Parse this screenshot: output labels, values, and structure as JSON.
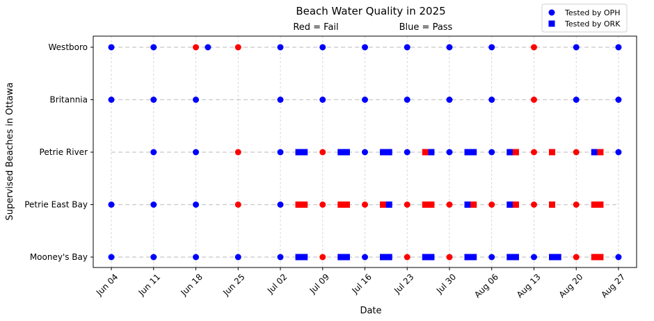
{
  "chart_data": {
    "type": "scatter",
    "title": "Beach Water Quality in 2025",
    "subtitle_left": "Red = Fail",
    "subtitle_right": "Blue = Pass",
    "xlabel": "Date",
    "ylabel": "Supervised Beaches in Ottawa",
    "x_range": [
      "2025-06-01",
      "2025-08-30"
    ],
    "x_ticks": [
      "2025-06-04",
      "2025-06-11",
      "2025-06-18",
      "2025-06-25",
      "2025-07-02",
      "2025-07-09",
      "2025-07-16",
      "2025-07-23",
      "2025-07-30",
      "2025-08-06",
      "2025-08-13",
      "2025-08-20",
      "2025-08-27"
    ],
    "x_tick_labels": [
      "Jun 04",
      "Jun 11",
      "Jun 18",
      "Jun 25",
      "Jul 02",
      "Jul 09",
      "Jul 16",
      "Jul 23",
      "Jul 30",
      "Aug 06",
      "Aug 13",
      "Aug 20",
      "Aug 27"
    ],
    "categories": [
      "Westboro",
      "Britannia",
      "Petrie River",
      "Petrie East Bay",
      "Mooney's Bay"
    ],
    "grid": true,
    "legend_position": "top-right",
    "legend": [
      {
        "label": "Tested by OPH",
        "marker": "circle"
      },
      {
        "label": "Tested by ORK",
        "marker": "square"
      }
    ],
    "colors": {
      "pass": "#0000ff",
      "fail": "#ff0000",
      "grid": "#cccccc",
      "connector": "#c8c8c8"
    },
    "beaches": [
      {
        "name": "Westboro",
        "line_range": [
          "2025-06-04",
          "2025-08-27"
        ],
        "oph": [
          [
            "2025-06-04",
            "pass"
          ],
          [
            "2025-06-11",
            "pass"
          ],
          [
            "2025-06-18",
            "fail"
          ],
          [
            "2025-06-20",
            "pass"
          ],
          [
            "2025-06-25",
            "fail"
          ],
          [
            "2025-07-02",
            "pass"
          ],
          [
            "2025-07-09",
            "pass"
          ],
          [
            "2025-07-16",
            "pass"
          ],
          [
            "2025-07-23",
            "pass"
          ],
          [
            "2025-07-30",
            "pass"
          ],
          [
            "2025-08-06",
            "pass"
          ],
          [
            "2025-08-13",
            "fail"
          ],
          [
            "2025-08-20",
            "pass"
          ],
          [
            "2025-08-27",
            "pass"
          ]
        ],
        "ork": []
      },
      {
        "name": "Britannia",
        "line_range": [
          "2025-06-04",
          "2025-08-27"
        ],
        "oph": [
          [
            "2025-06-04",
            "pass"
          ],
          [
            "2025-06-11",
            "pass"
          ],
          [
            "2025-06-18",
            "pass"
          ],
          [
            "2025-07-02",
            "pass"
          ],
          [
            "2025-07-09",
            "pass"
          ],
          [
            "2025-07-16",
            "pass"
          ],
          [
            "2025-07-23",
            "pass"
          ],
          [
            "2025-07-30",
            "pass"
          ],
          [
            "2025-08-06",
            "pass"
          ],
          [
            "2025-08-13",
            "fail"
          ],
          [
            "2025-08-20",
            "pass"
          ],
          [
            "2025-08-27",
            "pass"
          ]
        ],
        "ork": []
      },
      {
        "name": "Petrie River",
        "line_range": [
          "2025-06-04",
          "2025-08-27"
        ],
        "oph": [
          [
            "2025-06-11",
            "pass"
          ],
          [
            "2025-06-18",
            "pass"
          ],
          [
            "2025-06-25",
            "fail"
          ],
          [
            "2025-07-02",
            "pass"
          ],
          [
            "2025-07-09",
            "fail"
          ],
          [
            "2025-07-16",
            "pass"
          ],
          [
            "2025-07-23",
            "pass"
          ],
          [
            "2025-07-30",
            "pass"
          ],
          [
            "2025-08-06",
            "pass"
          ],
          [
            "2025-08-13",
            "fail"
          ],
          [
            "2025-08-20",
            "fail"
          ],
          [
            "2025-08-27",
            "pass"
          ]
        ],
        "ork": [
          [
            "2025-07-05",
            "pass"
          ],
          [
            "2025-07-06",
            "pass"
          ],
          [
            "2025-07-12",
            "pass"
          ],
          [
            "2025-07-13",
            "pass"
          ],
          [
            "2025-07-19",
            "pass"
          ],
          [
            "2025-07-20",
            "pass"
          ],
          [
            "2025-07-26",
            "fail"
          ],
          [
            "2025-07-27",
            "pass"
          ],
          [
            "2025-08-02",
            "pass"
          ],
          [
            "2025-08-03",
            "pass"
          ],
          [
            "2025-08-09",
            "pass"
          ],
          [
            "2025-08-10",
            "fail"
          ],
          [
            "2025-08-16",
            "fail"
          ],
          [
            "2025-08-23",
            "pass"
          ],
          [
            "2025-08-24",
            "fail"
          ]
        ]
      },
      {
        "name": "Petrie East Bay",
        "line_range": [
          "2025-06-04",
          "2025-08-27"
        ],
        "oph": [
          [
            "2025-06-04",
            "pass"
          ],
          [
            "2025-06-11",
            "pass"
          ],
          [
            "2025-06-18",
            "pass"
          ],
          [
            "2025-06-25",
            "fail"
          ],
          [
            "2025-07-02",
            "pass"
          ],
          [
            "2025-07-09",
            "fail"
          ],
          [
            "2025-07-16",
            "fail"
          ],
          [
            "2025-07-23",
            "fail"
          ],
          [
            "2025-07-30",
            "fail"
          ],
          [
            "2025-08-06",
            "fail"
          ],
          [
            "2025-08-13",
            "fail"
          ],
          [
            "2025-08-20",
            "fail"
          ]
        ],
        "ork": [
          [
            "2025-07-05",
            "fail"
          ],
          [
            "2025-07-06",
            "fail"
          ],
          [
            "2025-07-12",
            "fail"
          ],
          [
            "2025-07-13",
            "fail"
          ],
          [
            "2025-07-19",
            "fail"
          ],
          [
            "2025-07-20",
            "pass"
          ],
          [
            "2025-07-26",
            "fail"
          ],
          [
            "2025-07-27",
            "fail"
          ],
          [
            "2025-08-02",
            "pass"
          ],
          [
            "2025-08-03",
            "fail"
          ],
          [
            "2025-08-09",
            "pass"
          ],
          [
            "2025-08-10",
            "fail"
          ],
          [
            "2025-08-16",
            "fail"
          ],
          [
            "2025-08-23",
            "fail"
          ],
          [
            "2025-08-24",
            "fail"
          ]
        ]
      },
      {
        "name": "Mooney's Bay",
        "line_range": [
          "2025-06-04",
          "2025-08-27"
        ],
        "oph": [
          [
            "2025-06-04",
            "pass"
          ],
          [
            "2025-06-11",
            "pass"
          ],
          [
            "2025-06-18",
            "pass"
          ],
          [
            "2025-06-25",
            "pass"
          ],
          [
            "2025-07-02",
            "pass"
          ],
          [
            "2025-07-09",
            "fail"
          ],
          [
            "2025-07-16",
            "pass"
          ],
          [
            "2025-07-23",
            "fail"
          ],
          [
            "2025-07-30",
            "fail"
          ],
          [
            "2025-08-06",
            "pass"
          ],
          [
            "2025-08-13",
            "pass"
          ],
          [
            "2025-08-20",
            "fail"
          ],
          [
            "2025-08-27",
            "pass"
          ]
        ],
        "ork": [
          [
            "2025-07-05",
            "pass"
          ],
          [
            "2025-07-06",
            "pass"
          ],
          [
            "2025-07-12",
            "pass"
          ],
          [
            "2025-07-13",
            "pass"
          ],
          [
            "2025-07-19",
            "pass"
          ],
          [
            "2025-07-20",
            "pass"
          ],
          [
            "2025-07-26",
            "pass"
          ],
          [
            "2025-07-27",
            "pass"
          ],
          [
            "2025-08-02",
            "pass"
          ],
          [
            "2025-08-03",
            "pass"
          ],
          [
            "2025-08-09",
            "pass"
          ],
          [
            "2025-08-10",
            "pass"
          ],
          [
            "2025-08-16",
            "pass"
          ],
          [
            "2025-08-17",
            "pass"
          ],
          [
            "2025-08-23",
            "fail"
          ],
          [
            "2025-08-24",
            "fail"
          ]
        ]
      }
    ]
  }
}
